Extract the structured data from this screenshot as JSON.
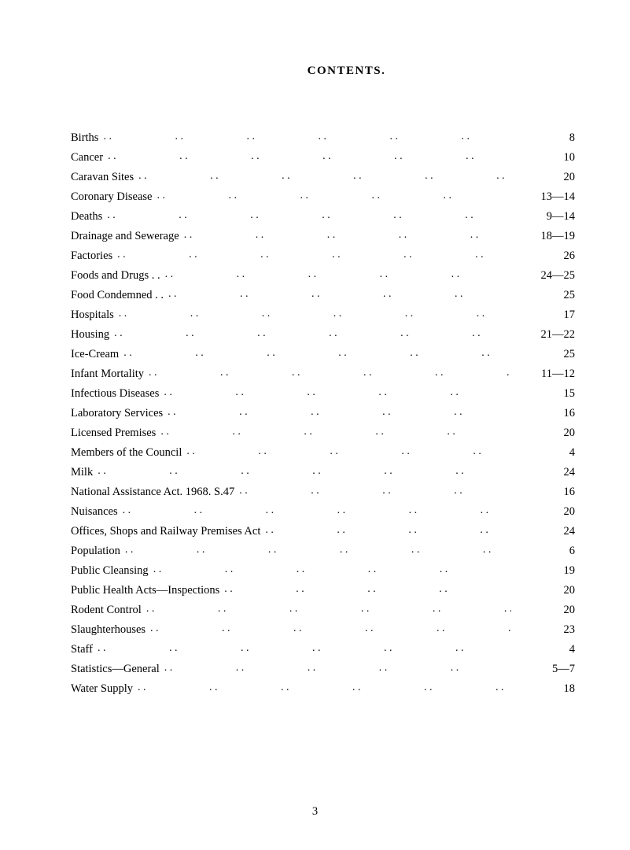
{
  "title": "CONTENTS.",
  "pageNumber": "3",
  "entries": [
    {
      "label": "Births",
      "page": "8"
    },
    {
      "label": "Cancer",
      "page": "10"
    },
    {
      "label": "Caravan Sites",
      "page": "20"
    },
    {
      "label": "Coronary Disease",
      "page": "13—14"
    },
    {
      "label": "Deaths",
      "page": "9—14"
    },
    {
      "label": "Drainage and Sewerage",
      "page": "18—19"
    },
    {
      "label": "Factories",
      "page": "26"
    },
    {
      "label": "Foods and Drugs  . .",
      "page": "24—25"
    },
    {
      "label": "Food Condemned  . .",
      "page": "25"
    },
    {
      "label": "Hospitals",
      "page": "17"
    },
    {
      "label": "Housing",
      "page": "21—22"
    },
    {
      "label": "Ice-Cream",
      "page": "25"
    },
    {
      "label": "Infant Mortality",
      "page": "11—12"
    },
    {
      "label": "Infectious Diseases",
      "page": "15"
    },
    {
      "label": "Laboratory Services",
      "page": "16"
    },
    {
      "label": "Licensed Premises",
      "page": "20"
    },
    {
      "label": "Members of the Council",
      "page": "4"
    },
    {
      "label": "Milk",
      "page": "24"
    },
    {
      "label": "National Assistance Act. 1968. S.47",
      "page": "16"
    },
    {
      "label": "Nuisances",
      "page": "20"
    },
    {
      "label": "Offices, Shops and Railway Premises Act",
      "page": "24"
    },
    {
      "label": "Population",
      "page": "6"
    },
    {
      "label": "Public Cleansing",
      "page": "19"
    },
    {
      "label": "Public Health Acts—Inspections",
      "page": "20"
    },
    {
      "label": "Rodent Control",
      "page": "20"
    },
    {
      "label": "Slaughterhouses",
      "page": "23"
    },
    {
      "label": "Staff",
      "page": "4"
    },
    {
      "label": "Statistics—General",
      "page": "5—7"
    },
    {
      "label": "Water Supply",
      "page": "18"
    }
  ],
  "style": {
    "background": "#ffffff",
    "text_color": "#000000",
    "title_fontsize": 15,
    "body_fontsize": 14.5,
    "font_family": "Times New Roman"
  }
}
